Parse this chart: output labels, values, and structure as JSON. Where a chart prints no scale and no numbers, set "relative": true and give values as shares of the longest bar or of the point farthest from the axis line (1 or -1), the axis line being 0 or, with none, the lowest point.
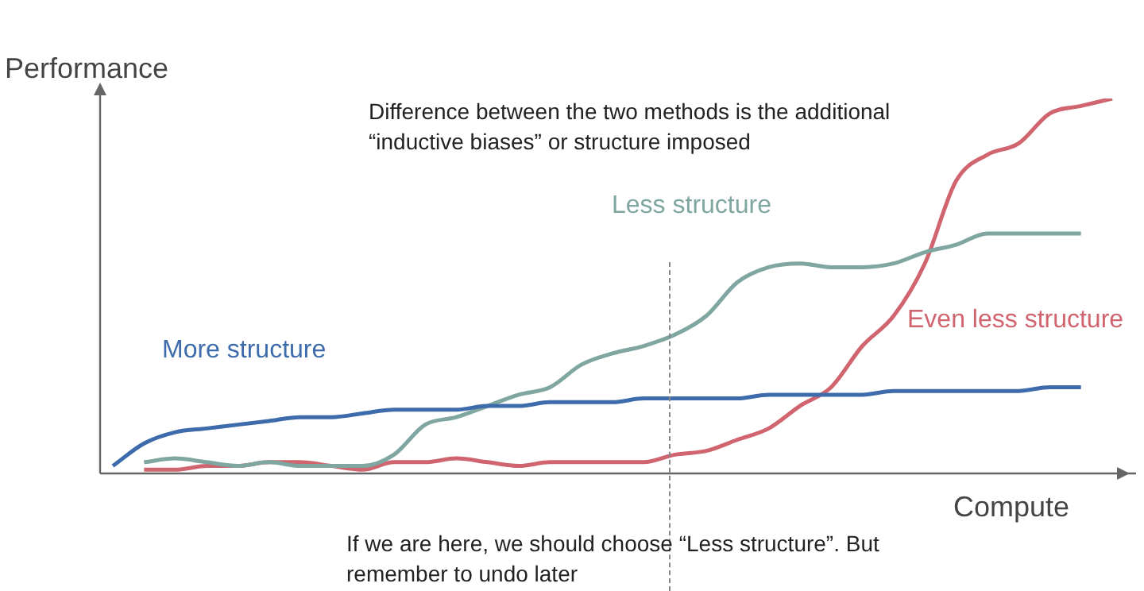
{
  "chart_data": {
    "type": "line",
    "relative": true,
    "xlabel": "Compute",
    "ylabel": "Performance",
    "tick_labels": false,
    "legend": false,
    "marker": "none",
    "line_style": "solid",
    "annotations": [
      "Difference between the two methods is the additional “inductive biases” or structure imposed",
      "If we are here, we should choose “Less structure”. But remember to undo later"
    ],
    "categories": [
      null,
      null,
      null,
      null,
      null,
      null,
      null,
      null,
      null,
      null,
      null,
      null,
      null,
      null,
      null,
      null,
      null,
      null,
      null,
      null,
      null,
      null,
      null,
      null,
      null,
      null,
      null,
      null,
      null,
      null,
      null,
      null,
      null
    ],
    "series": [
      {
        "name": "More structure",
        "color": "#3d6bab",
        "values": [
          0.02,
          0.08,
          0.11,
          0.12,
          0.13,
          0.14,
          0.15,
          0.15,
          0.16,
          0.17,
          0.17,
          0.17,
          0.18,
          0.18,
          0.19,
          0.19,
          0.19,
          0.2,
          0.2,
          0.2,
          0.2,
          0.21,
          0.21,
          0.21,
          0.21,
          0.22,
          0.22,
          0.22,
          0.22,
          0.22,
          0.23,
          0.23,
          null
        ]
      },
      {
        "name": "Less structure",
        "color": "#7fa6a0",
        "values": [
          null,
          0.03,
          0.04,
          0.03,
          0.02,
          0.03,
          0.02,
          0.02,
          0.02,
          0.05,
          0.13,
          0.15,
          0.18,
          0.21,
          0.23,
          0.29,
          0.32,
          0.34,
          0.37,
          0.42,
          0.51,
          0.55,
          0.56,
          0.55,
          0.55,
          0.56,
          0.59,
          0.61,
          0.64,
          0.64,
          0.64,
          0.64,
          null
        ]
      },
      {
        "name": "Even less structure",
        "color": "#d0646f",
        "values": [
          null,
          0.01,
          0.01,
          0.02,
          0.02,
          0.03,
          0.03,
          0.02,
          0.01,
          0.03,
          0.03,
          0.04,
          0.03,
          0.02,
          0.03,
          0.03,
          0.03,
          0.03,
          0.05,
          0.06,
          0.09,
          0.12,
          0.18,
          0.23,
          0.34,
          0.42,
          0.56,
          0.78,
          0.85,
          0.88,
          0.96,
          0.98,
          1
        ]
      }
    ]
  }
}
